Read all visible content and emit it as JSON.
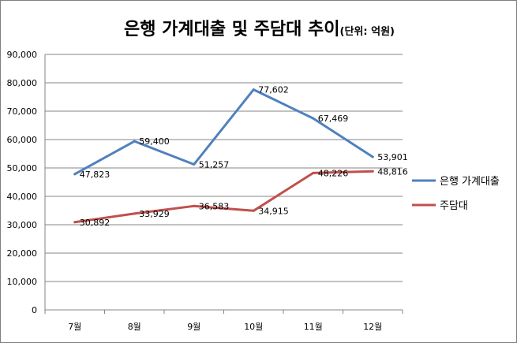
{
  "chart_data": {
    "type": "line",
    "title": "은행 가계대출 및 주담대 추이",
    "unit_note": "(단위: 억원)",
    "categories": [
      "7월",
      "8월",
      "9월",
      "10월",
      "11월",
      "12월"
    ],
    "ylim": [
      0,
      90000
    ],
    "yticks": [
      "0",
      "10,000",
      "20,000",
      "30,000",
      "40,000",
      "50,000",
      "60,000",
      "70,000",
      "80,000",
      "90,000"
    ],
    "grid": true,
    "legend_position": "right",
    "series": [
      {
        "name": "은행 가계대출",
        "color": "#4f81bd",
        "values": [
          47823,
          59400,
          51257,
          77602,
          67469,
          53901
        ],
        "labels": [
          "47,823",
          "59,400",
          "51,257",
          "77,602",
          "67,469",
          "53,901"
        ]
      },
      {
        "name": "주담대",
        "color": "#c0504d",
        "values": [
          30892,
          33929,
          36583,
          34915,
          48226,
          48816
        ],
        "labels": [
          "30,892",
          "33,929",
          "36,583",
          "34,915",
          "48,226",
          "48,816"
        ]
      }
    ]
  }
}
